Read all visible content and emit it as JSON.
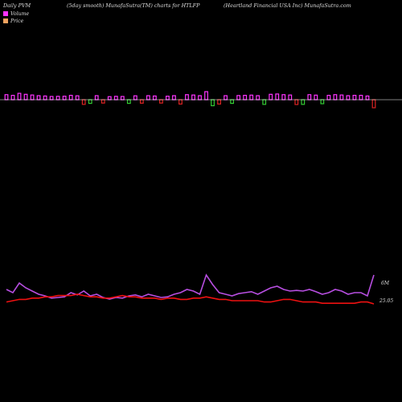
{
  "header": {
    "left": "Daily PVM",
    "middle": "(5day smooth) MunafaSutra(TM) charts for HTLFP",
    "right": "(Heartland Financial USA Inc) MunafaSutra.com"
  },
  "legend": {
    "volume_label": "Volume",
    "price_label": "Price"
  },
  "colors": {
    "background": "#000000",
    "volume_up": "#ff33ff",
    "volume_down": "#33cc33",
    "volume_alt": "#dd2222",
    "volume_line": "#b74ee0",
    "price_line": "#ee1111",
    "baseline": "#ffffff"
  },
  "chart_data": {
    "type": "bar",
    "series": [
      {
        "name": "Volume",
        "values": [
          45,
          35,
          65,
          50,
          40,
          30,
          25,
          18,
          20,
          22,
          35,
          28,
          40,
          25,
          30,
          20,
          15,
          20,
          18,
          25,
          28,
          22,
          30,
          25,
          20,
          22,
          30,
          35,
          45,
          40,
          30,
          90,
          60,
          35,
          30,
          25,
          32,
          35,
          38,
          30,
          40,
          50,
          55,
          45,
          40,
          42,
          40,
          45,
          38,
          30,
          35,
          45,
          40,
          30,
          35,
          35,
          25,
          90
        ]
      },
      {
        "name": "Price",
        "values": [
          25.2,
          25.3,
          25.4,
          25.4,
          25.5,
          25.5,
          25.6,
          25.6,
          25.7,
          25.7,
          25.7,
          25.8,
          25.7,
          25.6,
          25.6,
          25.5,
          25.5,
          25.6,
          25.7,
          25.6,
          25.6,
          25.5,
          25.5,
          25.5,
          25.4,
          25.5,
          25.5,
          25.4,
          25.4,
          25.5,
          25.5,
          25.6,
          25.5,
          25.4,
          25.4,
          25.3,
          25.3,
          25.3,
          25.3,
          25.3,
          25.2,
          25.2,
          25.3,
          25.4,
          25.4,
          25.3,
          25.2,
          25.2,
          25.2,
          25.1,
          25.1,
          25.1,
          25.1,
          25.1,
          25.1,
          25.2,
          25.2,
          25.05
        ]
      }
    ],
    "volume_label": "6M",
    "price_label": "25.05"
  }
}
